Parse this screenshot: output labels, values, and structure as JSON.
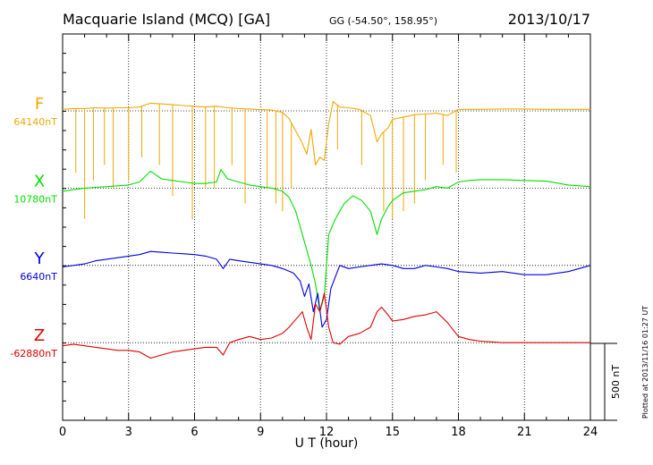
{
  "header": {
    "title": "Macquarie Island (MCQ)  [GA]",
    "coords": "GG (-54.50°, 158.95°)",
    "date": "2013/10/17"
  },
  "footer": {
    "plotted": "Plotted at 2013/11/16 01:27 UT",
    "scale_label": "500 nT"
  },
  "chart_data": {
    "type": "line",
    "title": "Macquarie Island (MCQ)  [GA]",
    "xlabel": "U T (hour)",
    "ylabel": "",
    "xlim": [
      0,
      24
    ],
    "xticks": [
      0,
      3,
      6,
      9,
      12,
      15,
      18,
      21,
      24
    ],
    "xtick_labels": [
      "0",
      "3",
      "6",
      "9",
      "12",
      "15",
      "18",
      "21",
      "24"
    ],
    "y_scale_bar_nT": 500,
    "nT_per_division": 500,
    "grid": true,
    "series": [
      {
        "name": "F",
        "baseline_label": "64140nT",
        "color": "#f0a800",
        "offset_division": 0,
        "x": [
          0,
          0.5,
          1,
          1.5,
          2,
          2.5,
          3,
          3.5,
          4,
          4.5,
          5,
          5.5,
          6,
          6.5,
          7,
          7.5,
          8,
          8.5,
          9,
          9.5,
          10,
          10.3,
          10.6,
          10.9,
          11.1,
          11.3,
          11.5,
          11.7,
          11.9,
          12.1,
          12.3,
          12.6,
          13,
          13.5,
          14,
          14.3,
          14.5,
          14.8,
          15,
          15.5,
          16,
          16.5,
          17,
          17.5,
          18,
          18.5,
          19,
          20,
          21,
          22,
          23,
          24
        ],
        "values": [
          10,
          15,
          15,
          20,
          18,
          20,
          20,
          25,
          50,
          45,
          40,
          35,
          30,
          25,
          30,
          20,
          15,
          12,
          8,
          5,
          -10,
          -50,
          -130,
          -210,
          -280,
          -120,
          -350,
          -300,
          -320,
          -80,
          60,
          25,
          20,
          10,
          -30,
          -200,
          -150,
          -110,
          -55,
          -40,
          -25,
          -20,
          -15,
          -30,
          10,
          10,
          10,
          12,
          12,
          10,
          10,
          10
        ],
        "spikes": [
          {
            "x": 0.6,
            "v": -400
          },
          {
            "x": 1.0,
            "v": -700
          },
          {
            "x": 1.4,
            "v": -450
          },
          {
            "x": 1.9,
            "v": -350
          },
          {
            "x": 2.3,
            "v": -500
          },
          {
            "x": 3.0,
            "v": -450
          },
          {
            "x": 3.6,
            "v": -300
          },
          {
            "x": 4.4,
            "v": -350
          },
          {
            "x": 5.0,
            "v": -550
          },
          {
            "x": 5.9,
            "v": -700
          },
          {
            "x": 6.5,
            "v": -500
          },
          {
            "x": 6.9,
            "v": -500
          },
          {
            "x": 7.7,
            "v": -350
          },
          {
            "x": 8.3,
            "v": -600
          },
          {
            "x": 9.3,
            "v": -500
          },
          {
            "x": 9.7,
            "v": -600
          },
          {
            "x": 10.0,
            "v": -650
          },
          {
            "x": 10.4,
            "v": -500
          },
          {
            "x": 12.5,
            "v": -250
          },
          {
            "x": 13.6,
            "v": -350
          },
          {
            "x": 14.6,
            "v": -650
          },
          {
            "x": 15.0,
            "v": -700
          },
          {
            "x": 15.5,
            "v": -650
          },
          {
            "x": 16.0,
            "v": -600
          },
          {
            "x": 16.5,
            "v": -450
          },
          {
            "x": 17.3,
            "v": -350
          },
          {
            "x": 17.9,
            "v": -400
          }
        ]
      },
      {
        "name": "X",
        "baseline_label": "10780nT",
        "color": "#00e000",
        "offset_division": 1,
        "x": [
          0,
          0.5,
          1,
          1.5,
          2,
          2.5,
          3,
          3.5,
          4,
          4.5,
          5,
          5.5,
          6,
          6.5,
          7,
          7.2,
          7.5,
          8,
          8.5,
          9,
          9.5,
          10,
          10.3,
          10.6,
          10.9,
          11.1,
          11.3,
          11.5,
          11.7,
          11.9,
          12.1,
          12.4,
          12.8,
          13.2,
          13.6,
          14,
          14.3,
          14.5,
          14.8,
          15,
          15.5,
          16,
          16.5,
          17,
          17.5,
          18,
          18.5,
          19,
          20,
          21,
          22,
          23,
          24
        ],
        "values": [
          -20,
          -10,
          0,
          5,
          10,
          15,
          20,
          40,
          110,
          60,
          50,
          40,
          30,
          30,
          40,
          120,
          60,
          40,
          20,
          10,
          0,
          -20,
          -60,
          -150,
          -300,
          -400,
          -500,
          -620,
          -800,
          -700,
          -300,
          -200,
          -100,
          -50,
          -80,
          -150,
          -300,
          -200,
          -120,
          -80,
          -30,
          -20,
          -10,
          10,
          0,
          40,
          50,
          55,
          55,
          50,
          45,
          20,
          10
        ]
      },
      {
        "name": "Y",
        "baseline_label": "6640nT",
        "color": "#0000e0",
        "offset_division": 2,
        "x": [
          0,
          0.5,
          1,
          1.5,
          2,
          2.5,
          3,
          3.5,
          4,
          4.5,
          5,
          5.5,
          6,
          6.5,
          7,
          7.3,
          7.6,
          8,
          8.5,
          9,
          9.5,
          10,
          10.5,
          10.8,
          11,
          11.2,
          11.4,
          11.6,
          11.8,
          12,
          12.2,
          12.6,
          13,
          13.5,
          14,
          14.5,
          15,
          15.5,
          16,
          16.5,
          17,
          17.5,
          18,
          19,
          20,
          21,
          22,
          23,
          24
        ],
        "values": [
          -10,
          0,
          10,
          30,
          40,
          50,
          60,
          70,
          90,
          85,
          80,
          75,
          70,
          60,
          40,
          -20,
          40,
          30,
          20,
          10,
          0,
          -20,
          -50,
          -100,
          -200,
          -120,
          -300,
          -180,
          -400,
          -350,
          -150,
          0,
          -20,
          -10,
          0,
          10,
          0,
          -20,
          -20,
          0,
          -10,
          -20,
          -40,
          -50,
          -40,
          -60,
          -60,
          -40,
          0
        ]
      },
      {
        "name": "Z",
        "baseline_label": "-62880nT",
        "color": "#e00000",
        "offset_division": 3,
        "x": [
          0,
          0.5,
          1,
          1.5,
          2,
          2.5,
          3,
          3.5,
          4,
          4.5,
          5,
          5.5,
          6,
          6.5,
          7,
          7.3,
          7.6,
          8,
          8.5,
          9,
          9.5,
          10,
          10.3,
          10.6,
          10.9,
          11.1,
          11.3,
          11.5,
          11.7,
          11.9,
          12.1,
          12.3,
          12.6,
          13,
          13.5,
          14,
          14.3,
          14.5,
          14.8,
          15,
          15.5,
          16,
          16.5,
          17,
          17.5,
          18,
          18.5,
          19,
          20,
          21,
          22,
          23,
          24
        ],
        "values": [
          -20,
          -10,
          -20,
          -30,
          -40,
          -50,
          -50,
          -60,
          -100,
          -80,
          -60,
          -50,
          -40,
          -30,
          -30,
          -80,
          0,
          20,
          40,
          20,
          30,
          60,
          100,
          150,
          200,
          100,
          20,
          250,
          200,
          320,
          100,
          0,
          -10,
          40,
          60,
          100,
          200,
          230,
          180,
          140,
          150,
          170,
          180,
          200,
          130,
          40,
          20,
          10,
          0,
          0,
          0,
          0,
          0
        ]
      }
    ]
  }
}
